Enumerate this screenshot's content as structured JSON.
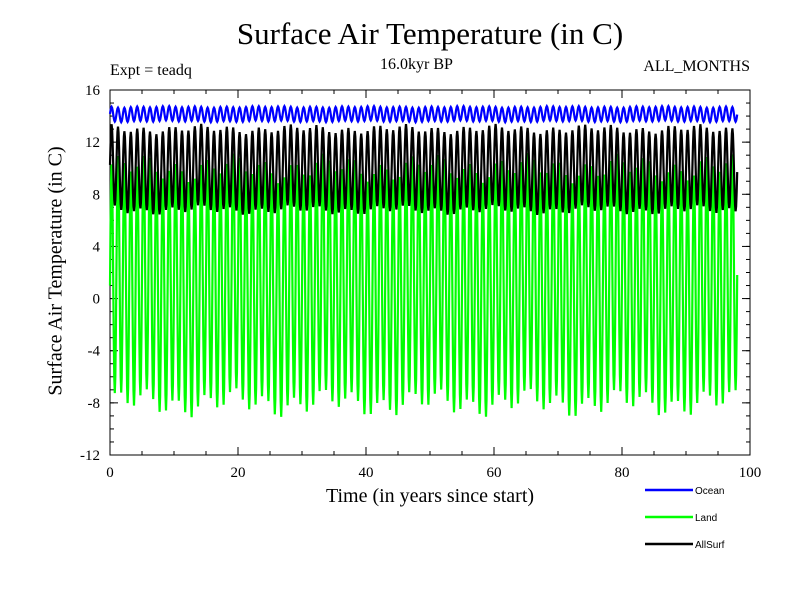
{
  "chart_data": {
    "type": "line",
    "title": "Surface Air Temperature (in C)",
    "subtitle": "16.0kyr BP",
    "experiment_label": "Expt = teadq",
    "months_label": "ALL_MONTHS",
    "xlabel": "Time (in years since start)",
    "ylabel": "Surface Air Temperature (in C)",
    "xlim": [
      0,
      100
    ],
    "ylim": [
      -12,
      16
    ],
    "x_ticks": [
      0,
      20,
      40,
      60,
      80,
      100
    ],
    "y_ticks": [
      -12,
      -8,
      -4,
      0,
      4,
      8,
      12,
      16
    ],
    "grid": false,
    "legend_position": "bottom-right",
    "x_end": 98,
    "series": [
      {
        "name": "Ocean",
        "color": "#0000ff",
        "cycle_min": 13.6,
        "cycle_max": 14.7,
        "periods_per_year": 1
      },
      {
        "name": "Land",
        "color": "#00ff00",
        "cycle_min": -8.0,
        "cycle_max": 10.0,
        "periods_per_year": 1
      },
      {
        "name": "AllSurf",
        "color": "#000000",
        "cycle_min": 6.8,
        "cycle_max": 13.0,
        "periods_per_year": 1
      }
    ]
  }
}
